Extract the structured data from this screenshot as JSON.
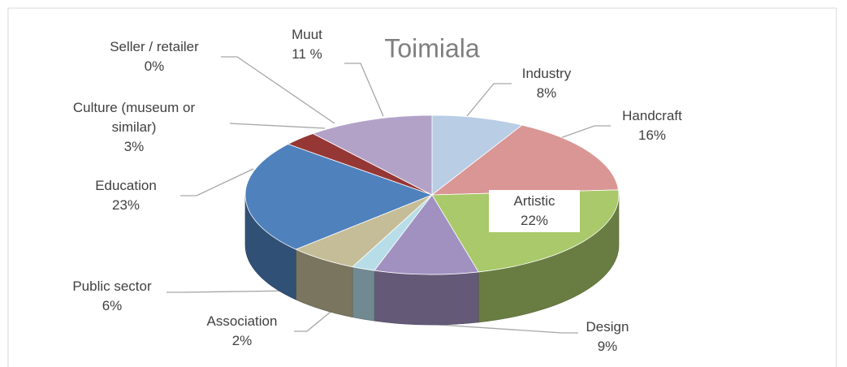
{
  "chart_data": {
    "type": "pie",
    "title": "Toimiala",
    "categories": [
      "Industry",
      "Handcraft",
      "Artistic",
      "Design",
      "Association",
      "Public sector",
      "Education",
      "Culture (museum or similar)",
      "Seller / retailer",
      "Muut"
    ],
    "values": [
      8,
      16,
      22,
      9,
      2,
      6,
      23,
      3,
      0,
      11
    ],
    "value_labels": [
      "8%",
      "16%",
      "22%",
      "9%",
      "2%",
      "6%",
      "23%",
      "3%",
      "0%",
      "11 %"
    ],
    "colors": [
      "#b9cde5",
      "#d99694",
      "#a9c96a",
      "#a191c0",
      "#b7dde8",
      "#c4bd97",
      "#4f81bd",
      "#953735",
      "#c0504d",
      "#b3a2c7"
    ]
  }
}
